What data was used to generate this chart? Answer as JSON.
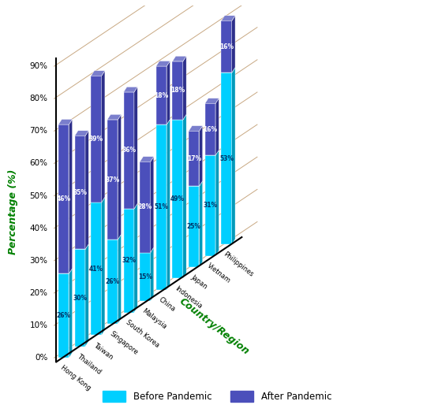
{
  "countries": [
    "Hong Kong",
    "Thailand",
    "Taiwan",
    "Singapore",
    "South Korea",
    "Malaysia",
    "China",
    "Indonesia",
    "Japan",
    "Vietnam",
    "Philippines"
  ],
  "before": [
    26,
    30,
    41,
    26,
    32,
    15,
    51,
    49,
    25,
    31,
    53
  ],
  "after": [
    46,
    35,
    39,
    37,
    36,
    28,
    18,
    18,
    17,
    16,
    16
  ],
  "before_color": "#00CFFF",
  "before_dark": "#009ABB",
  "before_top": "#66E5FF",
  "after_color": "#4B4FBB",
  "after_dark": "#2D2F8A",
  "after_top": "#7A7ECC",
  "ylabel": "Percentage (%)",
  "xlabel": "Country/Region",
  "yticks": [
    0,
    10,
    20,
    30,
    40,
    50,
    60,
    70,
    80,
    90
  ],
  "ytick_labels": [
    "0%",
    "10%",
    "20%",
    "30%",
    "40%",
    "50%",
    "60%",
    "70%",
    "80%",
    "90%"
  ],
  "grid_color": "#C8A882",
  "bg_color": "#FFFFFF"
}
